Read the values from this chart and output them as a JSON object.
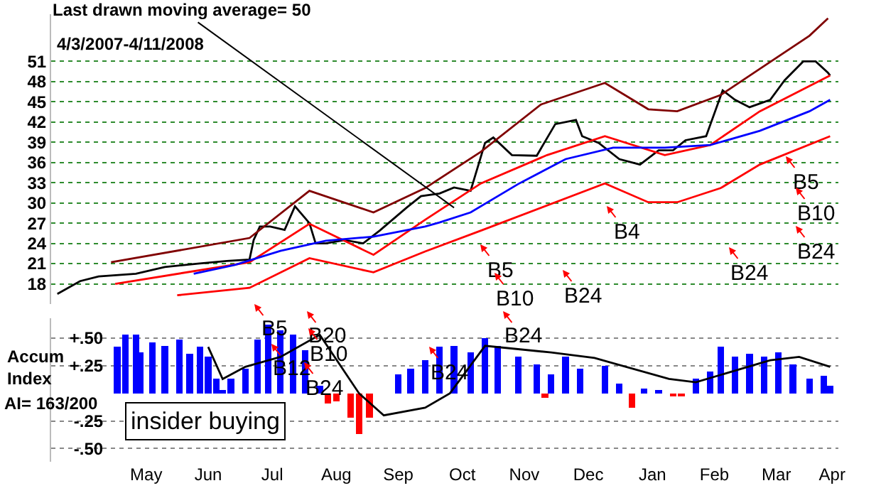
{
  "chart_data": [
    {
      "type": "line",
      "subtitle": "4/3/2007-4/11/2008",
      "xlim": [
        "2007-03-31",
        "2008-04-15"
      ],
      "ylim": [
        15,
        58
      ],
      "yticks": [
        18,
        21,
        24,
        27,
        30,
        33,
        36,
        39,
        42,
        45,
        48,
        51
      ],
      "grid": "y",
      "tick_labels": "y",
      "marker": "none",
      "line_style": "solid",
      "series": [
        {
          "color": "#000000",
          "x": [
            "2007-04-03",
            "2007-04-14",
            "2007-04-23",
            "2007-05-11",
            "2007-05-25",
            "2007-06-10",
            "2007-06-24",
            "2007-07-05",
            "2007-07-07",
            "2007-07-10",
            "2007-07-15",
            "2007-07-22",
            "2007-07-27",
            "2007-08-03",
            "2007-08-06",
            "2007-08-11",
            "2007-08-20",
            "2007-08-29",
            "2007-09-06",
            "2007-09-19",
            "2007-09-26",
            "2007-10-05",
            "2007-10-12",
            "2007-10-20",
            "2007-10-27",
            "2007-10-31",
            "2007-11-09",
            "2007-11-21",
            "2007-11-30",
            "2007-12-10",
            "2007-12-13",
            "2007-12-21",
            "2007-12-31",
            "2008-01-10",
            "2008-01-19",
            "2008-01-26",
            "2008-02-01",
            "2008-02-11",
            "2008-02-19",
            "2008-02-25",
            "2008-03-03",
            "2008-03-13",
            "2008-03-20",
            "2008-03-29",
            "2008-04-04",
            "2008-04-10",
            "2008-04-11"
          ],
          "values": [
            16.5,
            18.4,
            19.1,
            19.5,
            20.5,
            21,
            21.4,
            21.6,
            24.5,
            26.5,
            26.5,
            26,
            29.5,
            27,
            24,
            24,
            24.5,
            24,
            25.9,
            29.3,
            31,
            31.4,
            32.3,
            31.8,
            38.9,
            39.7,
            37.1,
            37,
            41.7,
            42.3,
            39.9,
            38.9,
            36.5,
            35.7,
            37.8,
            37.8,
            39.3,
            39.9,
            46.7,
            45.3,
            44.2,
            45.3,
            48.2,
            51,
            51,
            49.3,
            48.9
          ]
        },
        {
          "color": "#800000",
          "x": [
            "2007-04-29",
            "2007-07-05",
            "2007-08-03",
            "2007-09-03",
            "2007-09-28",
            "2007-10-25",
            "2007-11-23",
            "2007-12-24",
            "2008-01-14",
            "2008-01-28",
            "2008-02-18",
            "2008-03-08",
            "2008-04-01",
            "2008-04-10"
          ],
          "values": [
            21.2,
            24.8,
            31.8,
            28.6,
            32.2,
            37.6,
            44.6,
            47.8,
            43.9,
            43.6,
            46,
            49.9,
            54.8,
            57.4
          ]
        },
        {
          "color": "#ff0000",
          "x": [
            "2007-05-01",
            "2007-07-05",
            "2007-08-03",
            "2007-09-03",
            "2007-09-28",
            "2007-10-25",
            "2007-11-26",
            "2007-12-24",
            "2008-01-22",
            "2008-02-13",
            "2008-03-08",
            "2008-04-11"
          ],
          "values": [
            18,
            21.2,
            26.9,
            22.3,
            27.5,
            32.9,
            37.1,
            39.9,
            37.1,
            38.6,
            43.6,
            48.9
          ]
        },
        {
          "color": "#ff0000",
          "x": [
            "2007-05-31",
            "2007-07-05",
            "2007-08-03",
            "2007-09-03",
            "2007-09-28",
            "2007-10-25",
            "2007-12-24",
            "2008-01-14",
            "2008-01-28",
            "2008-02-18",
            "2008-03-08",
            "2008-04-11"
          ],
          "values": [
            16.3,
            17.4,
            21.8,
            19.7,
            22.8,
            25.9,
            32.9,
            30.1,
            30.1,
            32.2,
            35.7,
            39.9
          ]
        },
        {
          "color": "#0000ff",
          "x": [
            "2007-06-08",
            "2007-06-28",
            "2007-07-20",
            "2007-08-11",
            "2007-09-03",
            "2007-09-28",
            "2007-10-05",
            "2007-10-20",
            "2007-11-12",
            "2007-12-05",
            "2007-12-28",
            "2008-01-22",
            "2008-02-13",
            "2008-03-08",
            "2008-04-01",
            "2008-04-11"
          ],
          "values": [
            19.5,
            20.8,
            22.9,
            24.4,
            25,
            26.5,
            27.1,
            28.6,
            32.8,
            36.5,
            38.2,
            38.2,
            38.6,
            40.7,
            43.6,
            45.3
          ]
        }
      ],
      "annotations": [
        {
          "text": "Last drawn moving average= 50",
          "x": "2007-10-12",
          "y": 29.3
        },
        "B5",
        "B10",
        "B24",
        "B4",
        "B24",
        "B5",
        "B10",
        "B24"
      ]
    },
    {
      "type": "bar",
      "ylabel": "Accum Index",
      "xlim": [
        "2007-03-31",
        "2008-04-15"
      ],
      "ylim": [
        -0.62,
        0.68
      ],
      "xticks": [
        {
          "value": "2007-05-16",
          "label": "May"
        },
        {
          "value": "2007-06-15",
          "label": "Jun"
        },
        {
          "value": "2007-07-16",
          "label": "Jul"
        },
        {
          "value": "2007-08-16",
          "label": "Aug"
        },
        {
          "value": "2007-09-15",
          "label": "Sep"
        },
        {
          "value": "2007-10-16",
          "label": "Oct"
        },
        {
          "value": "2007-11-15",
          "label": "Nov"
        },
        {
          "value": "2007-12-16",
          "label": "Dec"
        },
        {
          "value": "2008-01-16",
          "label": "Jan"
        },
        {
          "value": "2008-02-15",
          "label": "Feb"
        },
        {
          "value": "2008-03-16",
          "label": "Mar"
        },
        {
          "value": "2008-04-12",
          "label": "Apr"
        }
      ],
      "yticks": [
        {
          "value": 0.5,
          "label": "+.50"
        },
        {
          "value": 0.25,
          "label": "+.25"
        },
        {
          "value": -0.25,
          "label": "-.25"
        },
        {
          "value": -0.5,
          "label": "-.50"
        }
      ],
      "grid": "y",
      "series": [
        {
          "x": [
            "2007-05-02",
            "2007-05-06",
            "2007-05-11",
            "2007-05-13",
            "2007-05-19",
            "2007-05-25",
            "2007-06-01",
            "2007-06-06",
            "2007-06-11",
            "2007-06-15",
            "2007-06-19",
            "2007-06-22",
            "2007-06-26",
            "2007-07-03",
            "2007-07-09",
            "2007-07-14",
            "2007-07-20",
            "2007-07-26",
            "2007-08-01",
            "2007-08-08",
            "2007-08-12",
            "2007-08-16",
            "2007-08-23",
            "2007-08-27",
            "2007-09-01",
            "2007-09-08",
            "2007-09-15",
            "2007-09-21",
            "2007-09-28",
            "2007-10-05",
            "2007-10-12",
            "2007-10-20",
            "2007-10-27",
            "2007-11-02",
            "2007-11-12",
            "2007-11-21",
            "2007-11-25",
            "2007-11-28",
            "2007-12-05",
            "2007-12-12",
            "2007-12-24",
            "2007-12-31",
            "2008-01-06",
            "2008-01-12",
            "2008-01-19",
            "2008-01-26",
            "2008-01-30",
            "2008-02-06",
            "2008-02-13",
            "2008-02-18",
            "2008-02-25",
            "2008-03-03",
            "2008-03-10",
            "2008-03-17",
            "2008-03-24",
            "2008-04-01",
            "2008-04-08",
            "2008-04-11"
          ],
          "values": [
            0.42,
            0.53,
            0.53,
            0.37,
            0.46,
            0.43,
            0.49,
            0.36,
            0.42,
            0.33,
            0.13,
            0.03,
            0.13,
            0.22,
            0.49,
            0.62,
            0.57,
            0.53,
            0.39,
            0.07,
            -0.09,
            -0.07,
            -0.22,
            -0.37,
            -0.22,
            0,
            0.17,
            0.22,
            0.3,
            0.42,
            0.43,
            0.37,
            0.5,
            0.43,
            0.33,
            0.26,
            -0.04,
            0.17,
            0.33,
            0.22,
            0.25,
            0.09,
            -0.13,
            0.04,
            0.03,
            -0.03,
            -0.03,
            0.13,
            0.2,
            0.42,
            0.33,
            0.36,
            0.33,
            0.37,
            0.26,
            0.13,
            0.16,
            0.07
          ],
          "colors": [
            "#0000ff",
            "#0000ff",
            "#0000ff",
            "#0000ff",
            "#0000ff",
            "#0000ff",
            "#0000ff",
            "#0000ff",
            "#0000ff",
            "#0000ff",
            "#0000ff",
            "#0000ff",
            "#0000ff",
            "#0000ff",
            "#0000ff",
            "#0000ff",
            "#0000ff",
            "#0000ff",
            "#0000ff",
            "#0000ff",
            "#ff0000",
            "#ff0000",
            "#ff0000",
            "#ff0000",
            "#ff0000",
            "#0000ff",
            "#0000ff",
            "#0000ff",
            "#0000ff",
            "#0000ff",
            "#0000ff",
            "#0000ff",
            "#0000ff",
            "#0000ff",
            "#0000ff",
            "#0000ff",
            "#ff0000",
            "#0000ff",
            "#0000ff",
            "#0000ff",
            "#0000ff",
            "#0000ff",
            "#ff0000",
            "#0000ff",
            "#0000ff",
            "#ff0000",
            "#ff0000",
            "#0000ff",
            "#0000ff",
            "#0000ff",
            "#0000ff",
            "#0000ff",
            "#0000ff",
            "#0000ff",
            "#0000ff",
            "#0000ff",
            "#0000ff",
            "#0000ff"
          ]
        },
        {
          "type": "line",
          "color": "#000000",
          "x": [
            "2007-06-15",
            "2007-06-22",
            "2007-07-03",
            "2007-07-20",
            "2007-08-08",
            "2007-08-27",
            "2007-09-08",
            "2007-09-28",
            "2007-10-10",
            "2007-10-27",
            "2007-11-28",
            "2007-12-19",
            "2008-01-24",
            "2008-02-06",
            "2008-03-13",
            "2008-03-27",
            "2008-04-11"
          ],
          "values": [
            0.42,
            0.13,
            0.24,
            0.33,
            0.53,
            0,
            -0.2,
            -0.13,
            0,
            0.43,
            0.37,
            0.32,
            0.13,
            0.1,
            0.3,
            0.33,
            0.24
          ]
        }
      ],
      "annotations": [
        "AI= 163/200",
        "insider buying",
        "B5",
        "B20",
        "B10",
        "B12",
        "B24",
        "B24",
        "B24"
      ]
    }
  ]
}
